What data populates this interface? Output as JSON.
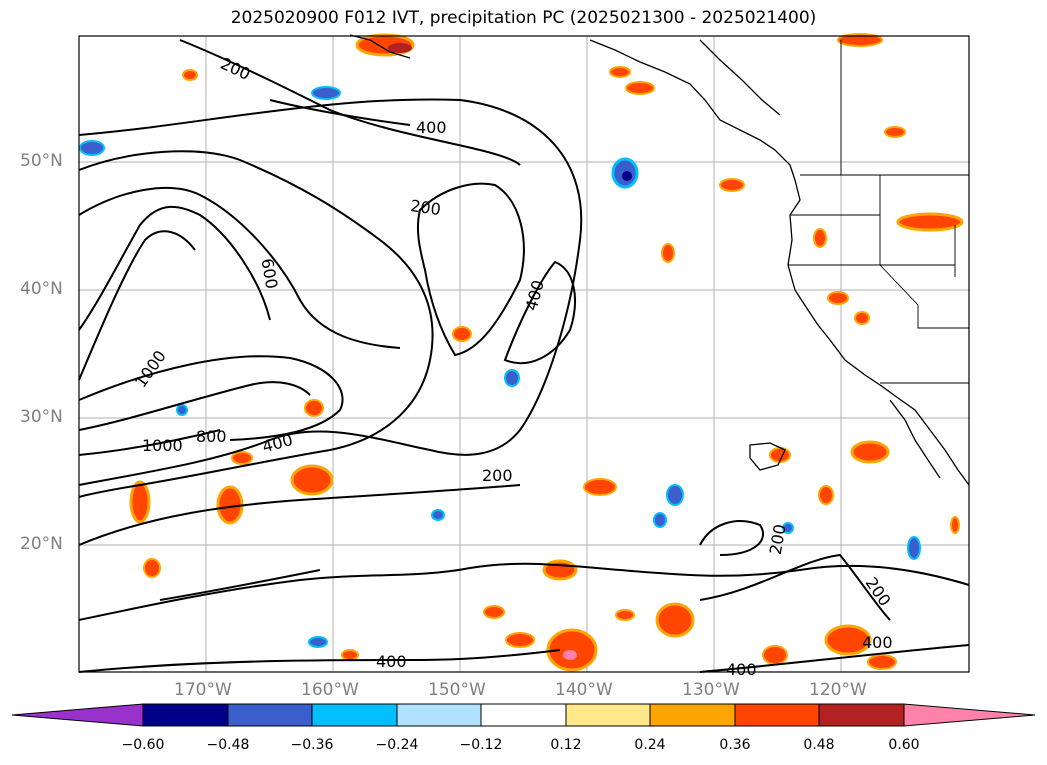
{
  "title": "2025020900 F012 IVT, precipitation PC (2025021300 - 2025021400)",
  "lat_labels": [
    "50°N",
    "40°N",
    "30°N",
    "20°N"
  ],
  "lon_labels": [
    "170°W",
    "160°W",
    "150°W",
    "140°W",
    "130°W",
    "120°W"
  ],
  "contour_labels": [
    "200",
    "400",
    "600",
    "800",
    "1000"
  ],
  "colorbar": {
    "ticks": [
      "−0.60",
      "−0.48",
      "−0.36",
      "−0.24",
      "−0.12",
      "0.12",
      "0.24",
      "0.36",
      "0.48",
      "0.60"
    ],
    "colors": [
      "#9932cc",
      "#00008b",
      "#3a5fcd",
      "#00bfff",
      "#b0e2ff",
      "#ffffff",
      "#ffe88a",
      "#ffa500",
      "#ff4500",
      "#b22222",
      "#ff82ab"
    ]
  }
}
